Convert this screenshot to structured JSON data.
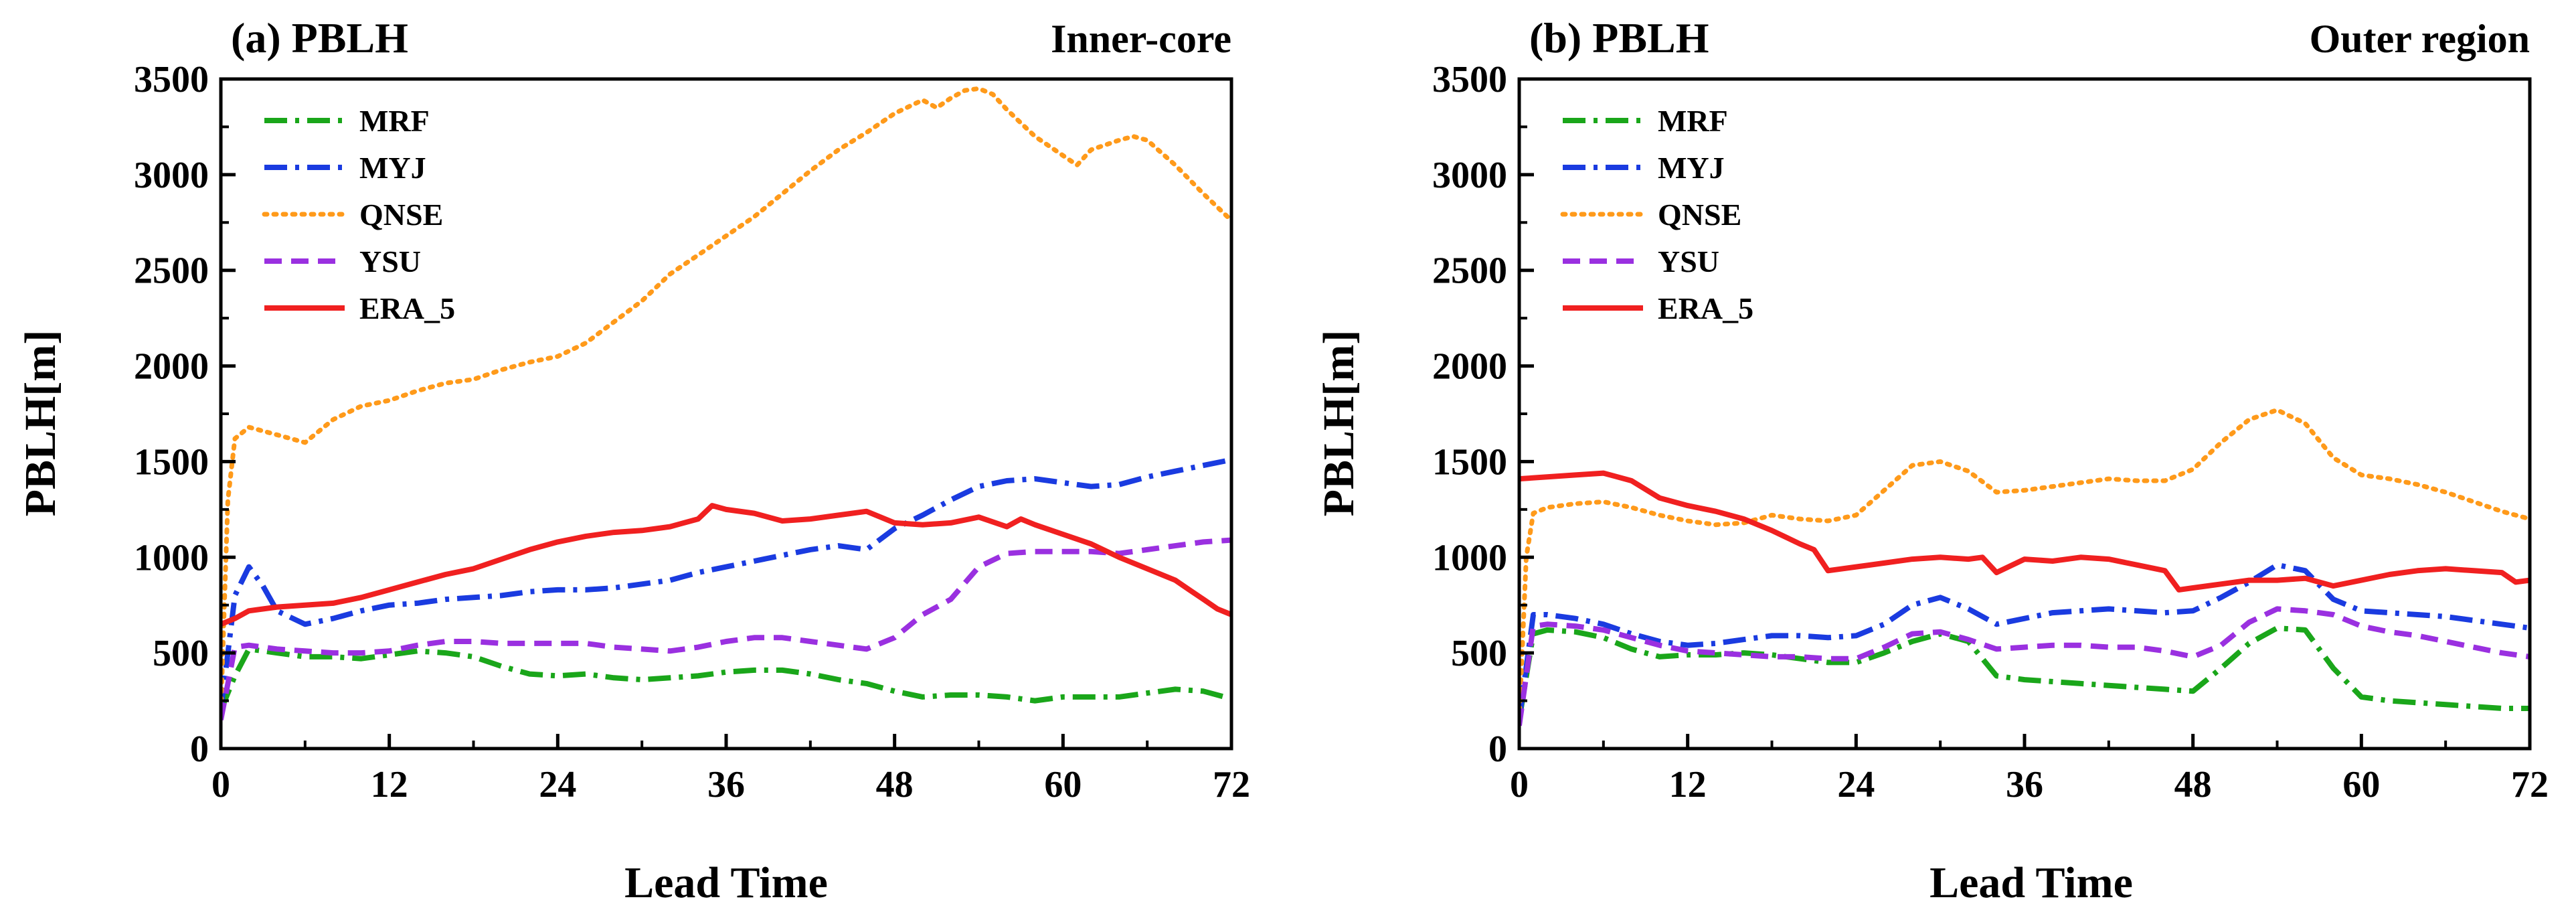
{
  "chart_data": [
    {
      "type": "line",
      "title": "(a) PBLH",
      "region_label": "Inner-core",
      "xlabel": "Lead Time",
      "ylabel": "PBLH[m]",
      "xlim": [
        0,
        72
      ],
      "ylim": [
        0,
        3500
      ],
      "xticks": [
        0,
        12,
        24,
        36,
        48,
        60,
        72
      ],
      "yticks": [
        0,
        500,
        1000,
        1500,
        2000,
        2500,
        3000,
        3500
      ],
      "legend_position": "top-left",
      "series": [
        {
          "name": "MRF",
          "color": "#1aa61a",
          "dash": "dashdot",
          "x": [
            0,
            1,
            2,
            4,
            6,
            8,
            10,
            12,
            14,
            16,
            18,
            20,
            22,
            24,
            26,
            28,
            30,
            32,
            34,
            36,
            38,
            40,
            42,
            44,
            46,
            48,
            50,
            52,
            54,
            56,
            58,
            60,
            62,
            64,
            66,
            68,
            70,
            72
          ],
          "values": [
            200,
            380,
            520,
            500,
            480,
            480,
            470,
            490,
            510,
            500,
            480,
            430,
            390,
            380,
            390,
            370,
            360,
            370,
            380,
            400,
            410,
            410,
            390,
            360,
            340,
            300,
            270,
            280,
            280,
            270,
            250,
            270,
            270,
            270,
            290,
            310,
            300,
            260
          ]
        },
        {
          "name": "MYJ",
          "color": "#1a3be0",
          "dash": "dashdot",
          "x": [
            0,
            1,
            2,
            3,
            4,
            6,
            8,
            10,
            12,
            14,
            16,
            18,
            20,
            22,
            24,
            26,
            28,
            30,
            32,
            34,
            36,
            38,
            40,
            42,
            44,
            46,
            48,
            50,
            52,
            54,
            56,
            58,
            60,
            62,
            64,
            66,
            68,
            70,
            72
          ],
          "values": [
            200,
            800,
            950,
            850,
            720,
            650,
            680,
            720,
            750,
            760,
            780,
            790,
            800,
            820,
            830,
            830,
            840,
            860,
            880,
            920,
            950,
            980,
            1010,
            1040,
            1060,
            1040,
            1150,
            1220,
            1300,
            1370,
            1400,
            1410,
            1390,
            1370,
            1380,
            1420,
            1450,
            1480,
            1510
          ]
        },
        {
          "name": "QNSE",
          "color": "#ff9a1a",
          "dash": "dot",
          "x": [
            0,
            0.5,
            1,
            2,
            4,
            6,
            8,
            10,
            12,
            14,
            16,
            18,
            20,
            22,
            24,
            26,
            28,
            30,
            32,
            34,
            36,
            38,
            40,
            42,
            44,
            46,
            48,
            50,
            51,
            52,
            53,
            54,
            55,
            56,
            58,
            60,
            61,
            62,
            64,
            65,
            66,
            68,
            70,
            72
          ],
          "values": [
            200,
            1300,
            1620,
            1680,
            1640,
            1600,
            1720,
            1790,
            1820,
            1870,
            1910,
            1930,
            1980,
            2020,
            2050,
            2120,
            2230,
            2340,
            2480,
            2580,
            2680,
            2780,
            2900,
            3020,
            3130,
            3220,
            3320,
            3390,
            3350,
            3400,
            3440,
            3450,
            3420,
            3340,
            3200,
            3100,
            3050,
            3130,
            3180,
            3200,
            3180,
            3050,
            2900,
            2760
          ]
        },
        {
          "name": "YSU",
          "color": "#9a30e0",
          "dash": "dash",
          "x": [
            0,
            1,
            2,
            4,
            6,
            8,
            10,
            12,
            14,
            16,
            18,
            20,
            22,
            24,
            26,
            28,
            30,
            32,
            34,
            36,
            38,
            40,
            42,
            44,
            46,
            48,
            50,
            52,
            54,
            56,
            58,
            60,
            62,
            64,
            66,
            68,
            70,
            72
          ],
          "values": [
            150,
            530,
            540,
            520,
            510,
            500,
            500,
            510,
            540,
            560,
            560,
            550,
            550,
            550,
            550,
            530,
            520,
            510,
            530,
            560,
            580,
            580,
            560,
            540,
            520,
            580,
            700,
            780,
            950,
            1020,
            1030,
            1030,
            1030,
            1020,
            1040,
            1060,
            1080,
            1090
          ]
        },
        {
          "name": "ERA_5",
          "color": "#f02020",
          "dash": "solid",
          "x": [
            0,
            1,
            2,
            4,
            6,
            8,
            10,
            12,
            14,
            16,
            18,
            20,
            22,
            24,
            26,
            28,
            30,
            32,
            34,
            35,
            36,
            38,
            40,
            42,
            44,
            46,
            48,
            50,
            52,
            54,
            56,
            57,
            58,
            60,
            62,
            64,
            66,
            68,
            69,
            70,
            71,
            72
          ],
          "values": [
            650,
            680,
            720,
            740,
            750,
            760,
            790,
            830,
            870,
            910,
            940,
            990,
            1040,
            1080,
            1110,
            1130,
            1140,
            1160,
            1200,
            1270,
            1250,
            1230,
            1190,
            1200,
            1220,
            1240,
            1180,
            1170,
            1180,
            1210,
            1160,
            1200,
            1170,
            1120,
            1070,
            1000,
            940,
            880,
            830,
            780,
            730,
            700
          ]
        }
      ]
    },
    {
      "type": "line",
      "title": "(b) PBLH",
      "region_label": "Outer region",
      "xlabel": "Lead Time",
      "ylabel": "PBLH[m]",
      "xlim": [
        0,
        72
      ],
      "ylim": [
        0,
        3500
      ],
      "xticks": [
        0,
        12,
        24,
        36,
        48,
        60,
        72
      ],
      "yticks": [
        0,
        500,
        1000,
        1500,
        2000,
        2500,
        3000,
        3500
      ],
      "legend_position": "top-left",
      "series": [
        {
          "name": "MRF",
          "color": "#1aa61a",
          "dash": "dashdot",
          "x": [
            0,
            1,
            2,
            4,
            6,
            8,
            10,
            12,
            14,
            16,
            18,
            20,
            22,
            24,
            26,
            28,
            30,
            32,
            34,
            36,
            38,
            40,
            42,
            44,
            46,
            48,
            50,
            52,
            54,
            56,
            58,
            60,
            62,
            64,
            66,
            68,
            70,
            72
          ],
          "values": [
            150,
            600,
            620,
            610,
            580,
            520,
            480,
            490,
            490,
            500,
            490,
            470,
            450,
            450,
            500,
            560,
            600,
            560,
            380,
            360,
            350,
            340,
            330,
            320,
            310,
            300,
            420,
            550,
            630,
            620,
            420,
            270,
            250,
            240,
            230,
            220,
            210,
            210
          ]
        },
        {
          "name": "MYJ",
          "color": "#1a3be0",
          "dash": "dashdot",
          "x": [
            0,
            1,
            2,
            4,
            6,
            8,
            10,
            12,
            14,
            16,
            18,
            20,
            22,
            24,
            26,
            28,
            30,
            32,
            34,
            36,
            38,
            40,
            42,
            44,
            46,
            48,
            50,
            52,
            54,
            56,
            58,
            60,
            62,
            64,
            66,
            68,
            70,
            72
          ],
          "values": [
            150,
            700,
            700,
            680,
            650,
            600,
            560,
            540,
            550,
            570,
            590,
            590,
            580,
            590,
            650,
            750,
            790,
            730,
            650,
            680,
            710,
            720,
            730,
            720,
            710,
            720,
            790,
            870,
            960,
            930,
            780,
            720,
            710,
            700,
            690,
            670,
            650,
            630
          ]
        },
        {
          "name": "QNSE",
          "color": "#ff9a1a",
          "dash": "dot",
          "x": [
            0,
            0.5,
            1,
            2,
            4,
            6,
            8,
            10,
            12,
            14,
            16,
            18,
            20,
            22,
            24,
            26,
            28,
            30,
            32,
            34,
            36,
            38,
            40,
            42,
            44,
            46,
            48,
            50,
            52,
            54,
            56,
            58,
            60,
            62,
            64,
            66,
            68,
            70,
            72
          ],
          "values": [
            150,
            1000,
            1230,
            1260,
            1280,
            1290,
            1260,
            1220,
            1190,
            1170,
            1180,
            1220,
            1200,
            1190,
            1220,
            1350,
            1480,
            1500,
            1450,
            1340,
            1350,
            1370,
            1390,
            1410,
            1400,
            1400,
            1460,
            1600,
            1720,
            1770,
            1700,
            1520,
            1430,
            1410,
            1380,
            1340,
            1290,
            1240,
            1200
          ]
        },
        {
          "name": "YSU",
          "color": "#9a30e0",
          "dash": "dash",
          "x": [
            0,
            1,
            2,
            4,
            6,
            8,
            10,
            12,
            14,
            16,
            18,
            20,
            22,
            24,
            26,
            28,
            30,
            32,
            34,
            36,
            38,
            40,
            42,
            44,
            46,
            48,
            50,
            52,
            54,
            56,
            58,
            60,
            62,
            64,
            66,
            68,
            70,
            72
          ],
          "values": [
            120,
            640,
            650,
            640,
            620,
            580,
            540,
            510,
            500,
            490,
            480,
            480,
            470,
            470,
            530,
            600,
            610,
            570,
            520,
            530,
            540,
            540,
            530,
            530,
            510,
            480,
            540,
            660,
            730,
            720,
            700,
            640,
            610,
            590,
            560,
            530,
            500,
            480
          ]
        },
        {
          "name": "ERA_5",
          "color": "#f02020",
          "dash": "solid",
          "x": [
            0,
            2,
            4,
            6,
            8,
            10,
            12,
            14,
            16,
            18,
            20,
            21,
            22,
            24,
            26,
            28,
            30,
            32,
            33,
            34,
            36,
            38,
            40,
            42,
            44,
            46,
            47,
            48,
            50,
            52,
            54,
            56,
            58,
            60,
            62,
            64,
            66,
            68,
            70,
            71,
            72
          ],
          "values": [
            1410,
            1420,
            1430,
            1440,
            1400,
            1310,
            1270,
            1240,
            1200,
            1140,
            1070,
            1040,
            930,
            950,
            970,
            990,
            1000,
            990,
            1000,
            920,
            990,
            980,
            1000,
            990,
            960,
            930,
            830,
            840,
            860,
            880,
            880,
            890,
            850,
            880,
            910,
            930,
            940,
            930,
            920,
            870,
            880
          ]
        }
      ]
    }
  ]
}
